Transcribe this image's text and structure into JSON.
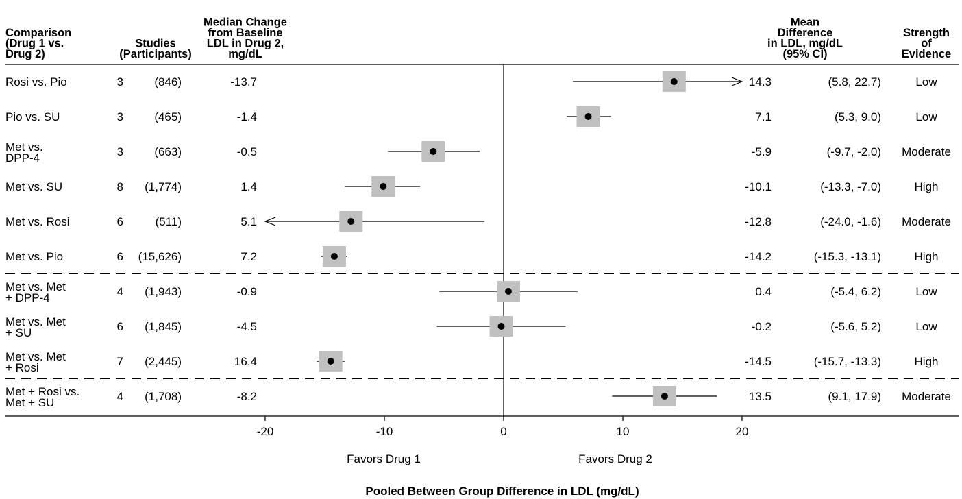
{
  "chart_data": {
    "type": "forest",
    "xlabel": "Pooled Between Group Difference in LDL (mg/dL)",
    "favors_left": "Favors Drug 1",
    "favors_right": "Favors Drug 2",
    "xlim": [
      -20,
      20
    ],
    "xticks": [
      -20,
      -10,
      0,
      10,
      20
    ],
    "columns": {
      "comparison": [
        "Comparison",
        "(Drug 1 vs.",
        "Drug 2)"
      ],
      "studies": [
        "Studies",
        "(Participants)"
      ],
      "median": [
        "Median Change",
        "from Baseline",
        "LDL in Drug 2,",
        "mg/dL"
      ],
      "mean_diff": [
        "Mean",
        "Difference",
        "in LDL, mg/dL",
        "(95% CI)"
      ],
      "strength": [
        "Strength",
        "of",
        "Evidence"
      ]
    },
    "rows": [
      {
        "label": [
          "Rosi vs. Pio"
        ],
        "studies": "3",
        "participants": "(846)",
        "median": "-13.7",
        "mean_text": "14.3",
        "ci_text": "(5.8, 22.7)",
        "mean": 14.3,
        "lo": 5.8,
        "hi": 22.7,
        "strength": "Low"
      },
      {
        "label": [
          "Pio vs. SU"
        ],
        "studies": "3",
        "participants": "(465)",
        "median": "-1.4",
        "mean_text": "7.1",
        "ci_text": "(5.3, 9.0)",
        "mean": 7.1,
        "lo": 5.3,
        "hi": 9.0,
        "strength": "Low"
      },
      {
        "label": [
          "Met vs.",
          "DPP-4"
        ],
        "studies": "3",
        "participants": "(663)",
        "median": "-0.5",
        "mean_text": "-5.9",
        "ci_text": "(-9.7, -2.0)",
        "mean": -5.9,
        "lo": -9.7,
        "hi": -2.0,
        "strength": "Moderate"
      },
      {
        "label": [
          "Met vs. SU"
        ],
        "studies": "8",
        "participants": "(1,774)",
        "median": "1.4",
        "mean_text": "-10.1",
        "ci_text": "(-13.3, -7.0)",
        "mean": -10.1,
        "lo": -13.3,
        "hi": -7.0,
        "strength": "High"
      },
      {
        "label": [
          "Met vs. Rosi"
        ],
        "studies": "6",
        "participants": "(511)",
        "median": "5.1",
        "mean_text": "-12.8",
        "ci_text": "(-24.0, -1.6)",
        "mean": -12.8,
        "lo": -24.0,
        "hi": -1.6,
        "strength": "Moderate"
      },
      {
        "label": [
          "Met vs. Pio"
        ],
        "studies": "6",
        "participants": "(15,626)",
        "median": "7.2",
        "mean_text": "-14.2",
        "ci_text": "(-15.3, -13.1)",
        "mean": -14.2,
        "lo": -15.3,
        "hi": -13.1,
        "strength": "High"
      },
      {
        "label": [
          "Met vs. Met",
          "+ DPP-4"
        ],
        "studies": "4",
        "participants": "(1,943)",
        "median": "-0.9",
        "mean_text": "0.4",
        "ci_text": "(-5.4, 6.2)",
        "mean": 0.4,
        "lo": -5.4,
        "hi": 6.2,
        "strength": "Low"
      },
      {
        "label": [
          "Met vs. Met",
          "+ SU"
        ],
        "studies": "6",
        "participants": "(1,845)",
        "median": "-4.5",
        "mean_text": "-0.2",
        "ci_text": "(-5.6, 5.2)",
        "mean": -0.2,
        "lo": -5.6,
        "hi": 5.2,
        "strength": "Low"
      },
      {
        "label": [
          "Met vs. Met",
          "+ Rosi"
        ],
        "studies": "7",
        "participants": "(2,445)",
        "median": "16.4",
        "mean_text": "-14.5",
        "ci_text": "(-15.7, -13.3)",
        "mean": -14.5,
        "lo": -15.7,
        "hi": -13.3,
        "strength": "High"
      },
      {
        "label": [
          "Met + Rosi vs.",
          "Met + SU"
        ],
        "studies": "4",
        "participants": "(1,708)",
        "median": "-8.2",
        "mean_text": "13.5",
        "ci_text": "(9.1, 17.9)",
        "mean": 13.5,
        "lo": 9.1,
        "hi": 17.9,
        "strength": "Moderate"
      }
    ],
    "group_breaks_after": [
      5,
      8
    ],
    "colors": {
      "box": "#c0c0c0",
      "point": "#000000",
      "line": "#000000"
    }
  }
}
